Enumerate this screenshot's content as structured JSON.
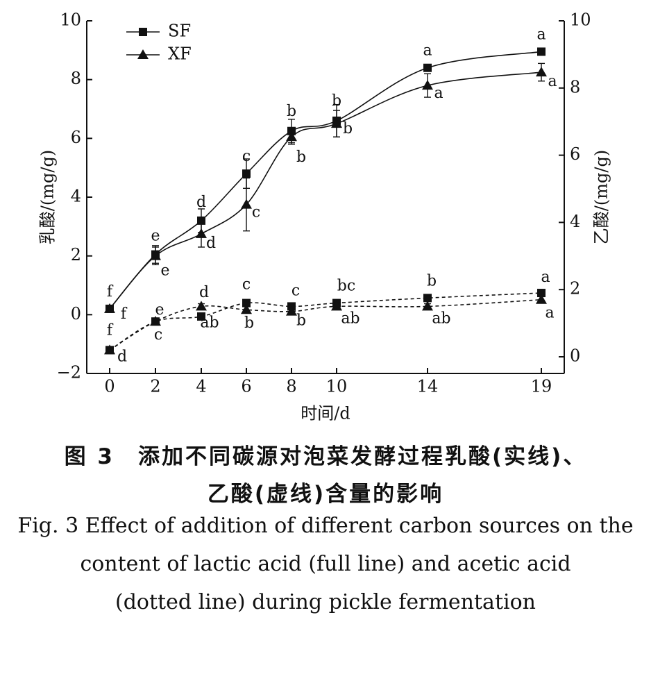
{
  "chart_data": {
    "type": "line",
    "x": [
      0,
      2,
      4,
      6,
      8,
      10,
      14,
      19
    ],
    "xlabel": "时间/d",
    "ylabel_left": "乳酸/(mg/g)",
    "ylabel_right": "乙酸/(mg/g)",
    "ylim_left": [
      -2,
      10
    ],
    "ylim_right": [
      0,
      10
    ],
    "yticks_left": [
      -2,
      0,
      2,
      4,
      6,
      8,
      10
    ],
    "yticks_right": [
      0,
      2,
      4,
      6,
      8,
      10
    ],
    "legend_position": "top-left",
    "grid": false,
    "series": [
      {
        "name": "SF",
        "marker": "square",
        "line": "solid",
        "axis": "left",
        "values": [
          0.2,
          2.05,
          3.2,
          4.8,
          6.25,
          6.6,
          8.4,
          8.95
        ],
        "errors": [
          0.1,
          0.3,
          0.4,
          0.5,
          0.4,
          0.55,
          0.1,
          0.1
        ],
        "letters": [
          "f",
          "e",
          "d",
          "c",
          "b",
          "b",
          "a",
          "a"
        ]
      },
      {
        "name": "XF",
        "marker": "triangle",
        "line": "solid",
        "axis": "left",
        "values": [
          0.2,
          2.0,
          2.75,
          3.75,
          6.05,
          6.5,
          7.8,
          8.25
        ],
        "errors": [
          0.1,
          0.3,
          0.45,
          0.9,
          0.25,
          0.45,
          0.4,
          0.3
        ],
        "letters": [
          "f",
          "e",
          "d",
          "c",
          "b",
          "b",
          "a",
          "a"
        ]
      },
      {
        "name": "SF",
        "marker": "square",
        "line": "dashed",
        "axis": "right",
        "values": [
          0.2,
          1.05,
          1.2,
          1.6,
          1.5,
          1.6,
          1.75,
          1.9
        ],
        "errors": [
          0.08,
          0.08,
          0.1,
          0.1,
          0.1,
          0.1,
          0.05,
          0.1
        ],
        "letters": [
          "f",
          "e",
          "d",
          "c",
          "c",
          "bc",
          "b",
          "a"
        ]
      },
      {
        "name": "XF",
        "marker": "triangle",
        "line": "dashed",
        "axis": "right",
        "values": [
          0.2,
          1.05,
          1.5,
          1.4,
          1.35,
          1.5,
          1.5,
          1.7
        ],
        "errors": [
          0.08,
          0.08,
          0.08,
          0.1,
          0.08,
          0.1,
          0.08,
          0.1
        ],
        "letters": [
          "d",
          "c",
          "ab",
          "b",
          "b",
          "ab",
          "ab",
          "a"
        ]
      }
    ]
  },
  "caption": {
    "cn_line1": "图 3　添加不同碳源对泡菜发酵过程乳酸(实线)、",
    "cn_line2": "乙酸(虚线)含量的影响",
    "en_line1": "Fig. 3 Effect of addition of different carbon sources on the",
    "en_line2": "content of lactic acid (full line) and acetic acid",
    "en_line3": "(dotted line) during pickle fermentation"
  }
}
